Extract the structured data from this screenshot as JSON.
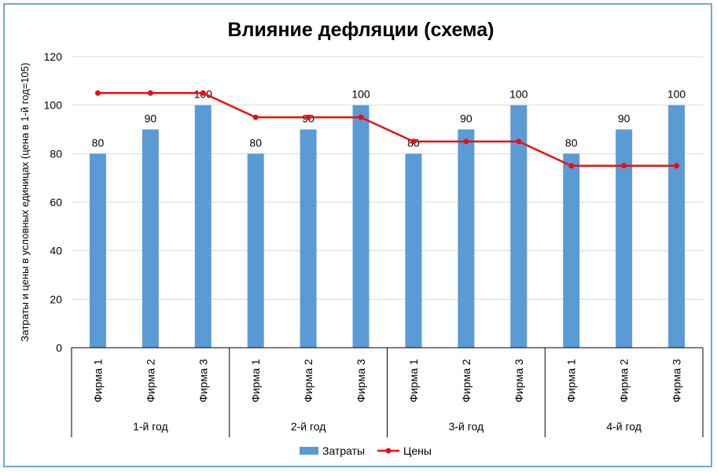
{
  "chart_data": {
    "type": "bar",
    "title": "Влияние дефляции (схема)",
    "ylabel": "Затраты и цены в условных единицах (цена в 1-й год=105)",
    "ylim": [
      0,
      120
    ],
    "y_ticks": [
      0,
      20,
      40,
      60,
      80,
      100,
      120
    ],
    "grid": true,
    "legend_position": "bottom",
    "colors": {
      "bars": "#5b9bd5",
      "line": "#e8100f"
    },
    "groups": [
      "1-й год",
      "2-й год",
      "3-й год",
      "4-й год"
    ],
    "categories": [
      "Фирма 1",
      "Фирма 2",
      "Фирма 3",
      "Фирма 1",
      "Фирма 2",
      "Фирма 3",
      "Фирма 1",
      "Фирма 2",
      "Фирма 3",
      "Фирма 1",
      "Фирма 2",
      "Фирма 3"
    ],
    "series": [
      {
        "name": "Затраты",
        "type": "bar",
        "values": [
          80,
          90,
          100,
          80,
          90,
          100,
          80,
          90,
          100,
          80,
          90,
          100
        ]
      },
      {
        "name": "Цены",
        "type": "line",
        "values": [
          105,
          105,
          105,
          95,
          95,
          95,
          85,
          85,
          85,
          75,
          75,
          75
        ]
      }
    ]
  }
}
